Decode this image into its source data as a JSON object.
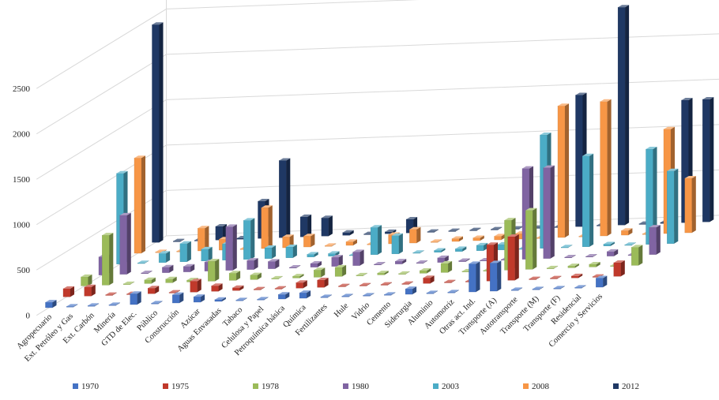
{
  "chart_data": {
    "type": "bar",
    "subtype": "3d-column",
    "title": "",
    "xlabel": "",
    "ylabel": "",
    "ylim": [
      0,
      3000
    ],
    "y_ticks": [
      "0",
      "500",
      "1000",
      "1500",
      "2000",
      "2500"
    ],
    "legend_position": "bottom",
    "grid": true,
    "categories": [
      "Agropecuario",
      "Ext. Petróleo y Gas",
      "Ext. Carbón",
      "Minería",
      "GTD de Elec.",
      "Público",
      "Construcción",
      "Azúcar",
      "Aguas Envasadas",
      "Tabaco",
      "Celulosa y Papel",
      "Petroquímica básica",
      "Química",
      "Fertilizantes",
      "Hule",
      "Vidrio",
      "Cemento",
      "Siderurgia",
      "Aluminio",
      "Automotriz",
      "Otras act. Ind.",
      "Transporte (A)",
      "Autotransporte",
      "Transporte (M)",
      "Transporte (F)",
      "Residencial",
      "Comercio y Servicios"
    ],
    "series": [
      {
        "name": "1970",
        "color": "#4472c4",
        "values": [
          60,
          5,
          5,
          5,
          120,
          5,
          90,
          60,
          20,
          5,
          5,
          50,
          60,
          5,
          5,
          5,
          5,
          60,
          5,
          5,
          310,
          310,
          5,
          5,
          5,
          5,
          100
        ]
      },
      {
        "name": "1975",
        "color": "#c0392b",
        "values": [
          90,
          100,
          5,
          5,
          60,
          5,
          120,
          60,
          30,
          5,
          5,
          60,
          80,
          5,
          5,
          5,
          5,
          60,
          5,
          5,
          400,
          480,
          5,
          5,
          20,
          5,
          150
        ]
      },
      {
        "name": "1978",
        "color": "#9bbb59",
        "values": [
          100,
          550,
          5,
          40,
          40,
          20,
          220,
          80,
          50,
          5,
          20,
          80,
          100,
          5,
          20,
          5,
          30,
          100,
          5,
          5,
          550,
          650,
          5,
          20,
          30,
          5,
          200
        ]
      },
      {
        "name": "1980",
        "color": "#8064a2",
        "values": [
          200,
          650,
          5,
          60,
          60,
          100,
          480,
          100,
          80,
          5,
          40,
          100,
          150,
          5,
          30,
          5,
          50,
          10,
          5,
          5,
          1000,
          1000,
          5,
          5,
          50,
          5,
          300
        ]
      },
      {
        "name": "2003",
        "color": "#4bacc6",
        "values": [
          1000,
          5,
          100,
          200,
          130,
          180,
          430,
          120,
          120,
          30,
          30,
          5,
          300,
          200,
          5,
          20,
          30,
          60,
          60,
          5,
          1250,
          5,
          1000,
          20,
          5,
          1050,
          800
        ]
      },
      {
        "name": "2008",
        "color": "#f79646",
        "values": [
          1050,
          5,
          5,
          250,
          120,
          5,
          450,
          120,
          120,
          5,
          40,
          5,
          100,
          150,
          5,
          30,
          30,
          40,
          60,
          5,
          1450,
          5,
          1480,
          50,
          5,
          1150,
          600
        ]
      },
      {
        "name": "2012",
        "color": "#1f3864",
        "values": [
          2400,
          5,
          5,
          150,
          10,
          410,
          850,
          220,
          200,
          30,
          5,
          20,
          150,
          5,
          5,
          5,
          5,
          5,
          5,
          5,
          1450,
          5,
          2400,
          5,
          10,
          1350,
          1350
        ]
      }
    ]
  }
}
